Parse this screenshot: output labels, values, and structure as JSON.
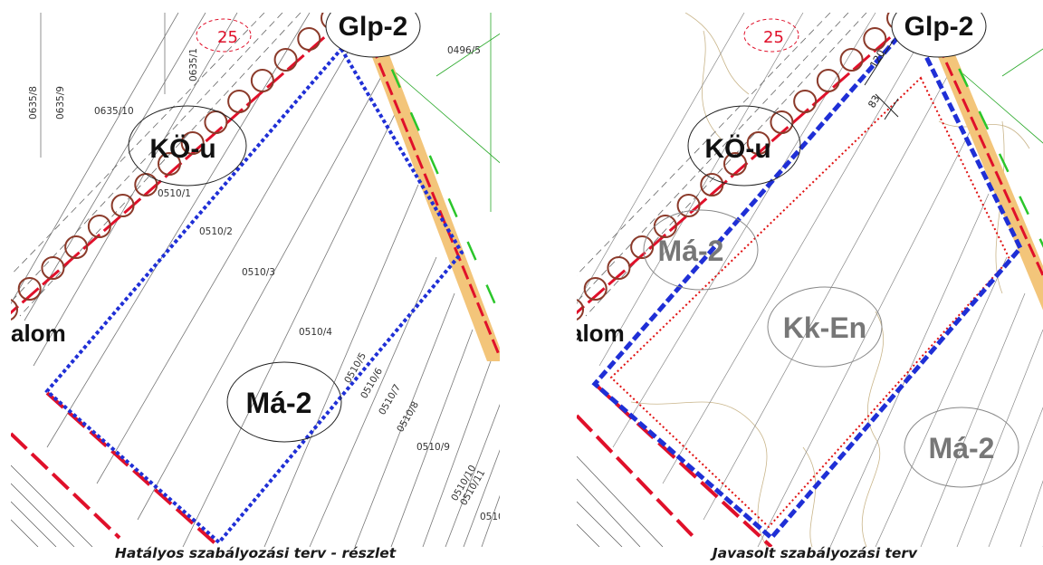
{
  "left_map": {
    "zones": {
      "glp": "Glp-2",
      "ko": "KÖ-u",
      "ma": "Má-2",
      "alom": "alom",
      "temp": "25"
    },
    "parcels": [
      "0635/8",
      "0635/9",
      "0635/10",
      "0635/1",
      "0496/5",
      "0510/1",
      "0510/2",
      "0510/3",
      "0510/4",
      "0510/5",
      "0510/6",
      "0510/7",
      "0510/8",
      "0510/9",
      "0510/10",
      "0510/11",
      "0510"
    ],
    "caption": "Hatályos szabályozási terv - részlet"
  },
  "right_map": {
    "zones": {
      "glp": "Glp-2",
      "ko": "KÖ-u",
      "ma_top": "Má-2",
      "kk": "Kk-En",
      "ma_bottom": "Má-2",
      "alom": "alom",
      "temp": "25"
    },
    "dimensions": {
      "d1": "120",
      "d2": "83"
    },
    "caption": "Javasolt szabályozási terv"
  },
  "colors": {
    "blue_boundary": "#1f2fd6",
    "red_boundary": "#e0102a",
    "road_fill": "#f3c57a",
    "green_line": "#2bc62b",
    "circle": "#8b3a2a",
    "red_dotted": "#e01010"
  }
}
